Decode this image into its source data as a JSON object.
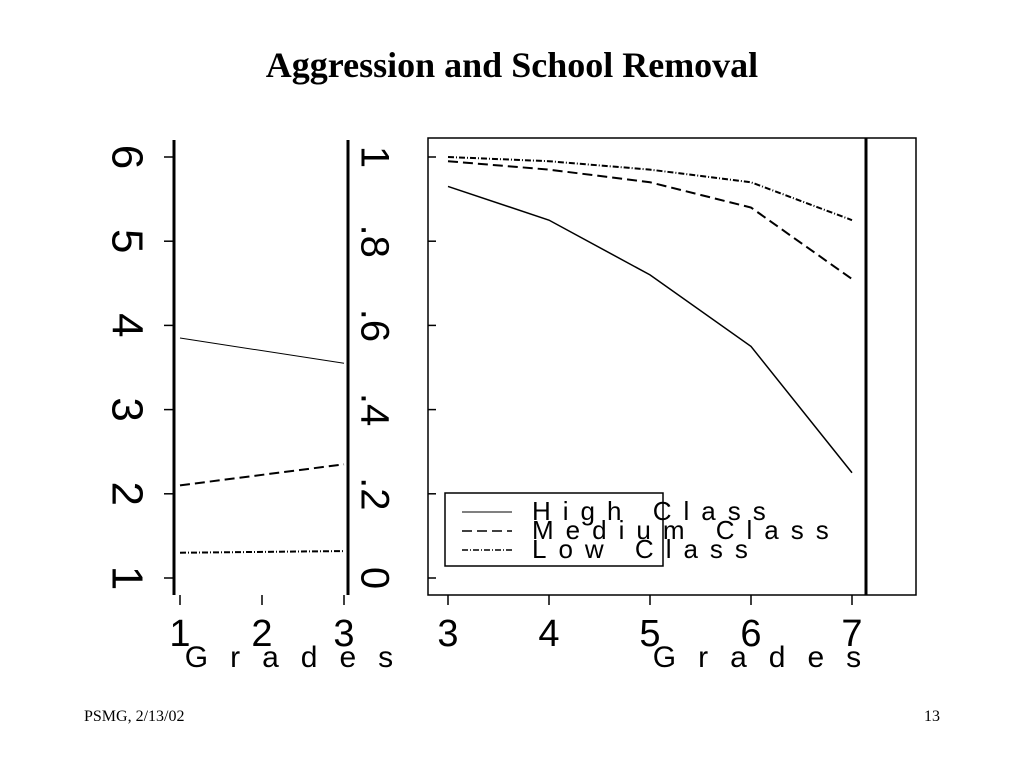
{
  "slide": {
    "title": "Aggression and School Removal",
    "footer_left": "PSMG, 2/13/02",
    "page_number": "13"
  },
  "chart_data": [
    {
      "type": "line",
      "x": [
        1,
        2,
        3
      ],
      "x_tick_labels": [
        "1",
        "2",
        "3"
      ],
      "y_tick_labels": [
        "1",
        "2",
        "3",
        "4",
        "5",
        "6"
      ],
      "ylim": [
        1,
        6
      ],
      "xlabel": "Grades",
      "series": [
        {
          "values": [
            3.85,
            3.55
          ],
          "x": [
            1,
            3
          ],
          "style": "solid"
        },
        {
          "values": [
            2.1,
            2.35
          ],
          "x": [
            1,
            3
          ],
          "style": "dashed"
        },
        {
          "values": [
            1.3,
            1.32
          ],
          "x": [
            1,
            3
          ],
          "style": "dashdot"
        }
      ]
    },
    {
      "type": "line",
      "x": [
        3,
        4,
        5,
        6,
        7
      ],
      "x_tick_labels": [
        "3",
        "4",
        "5",
        "6",
        "7"
      ],
      "y_tick_labels": [
        "0",
        ".2",
        ".4",
        ".6",
        ".8",
        "1"
      ],
      "ylim": [
        0,
        1
      ],
      "xlabel": "Grades",
      "legend": "bottom-left",
      "series": [
        {
          "name": "High Class",
          "style": "solid",
          "values": [
            0.93,
            0.85,
            0.72,
            0.55,
            0.25
          ]
        },
        {
          "name": "Medium Class",
          "style": "dashed",
          "values": [
            0.99,
            0.97,
            0.94,
            0.88,
            0.71
          ]
        },
        {
          "name": "Low Class",
          "style": "dashdot",
          "values": [
            1.0,
            0.99,
            0.97,
            0.94,
            0.85
          ]
        }
      ]
    }
  ]
}
